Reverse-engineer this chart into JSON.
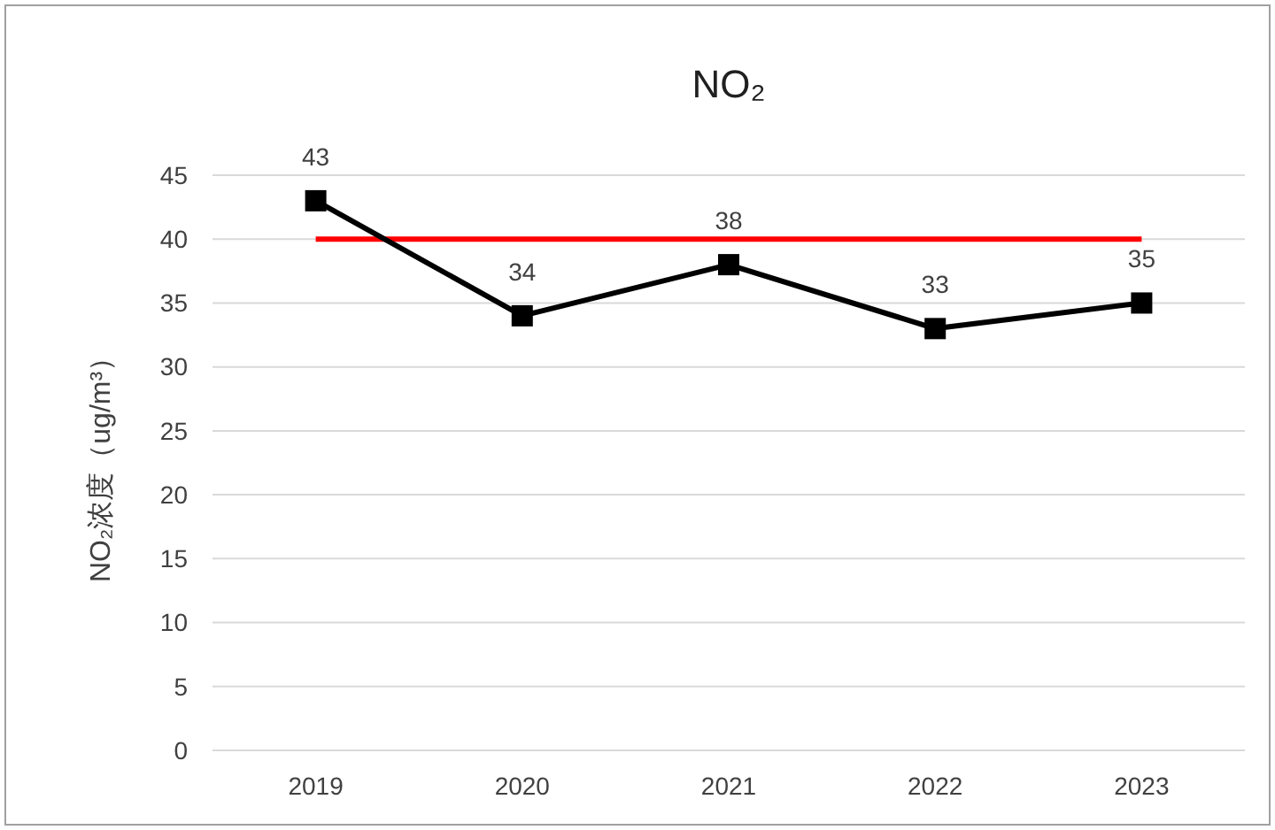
{
  "chart_data": {
    "type": "line",
    "title": "NO₂",
    "ylabel": "NO₂浓度（ug/m³）",
    "categories": [
      "2019",
      "2020",
      "2021",
      "2022",
      "2023"
    ],
    "series": [
      {
        "color": "#000000",
        "values": [
          43,
          34,
          38,
          33,
          35
        ]
      }
    ],
    "ylim": [
      0,
      45
    ],
    "yticks": [
      0,
      5,
      10,
      15,
      20,
      25,
      30,
      35,
      40,
      45
    ],
    "grid": "y",
    "marker": "square",
    "line_style": "solid",
    "data_labels": true,
    "ref_lines": [
      {
        "axis": "y",
        "value": 40,
        "color": "#ff0000"
      }
    ]
  }
}
